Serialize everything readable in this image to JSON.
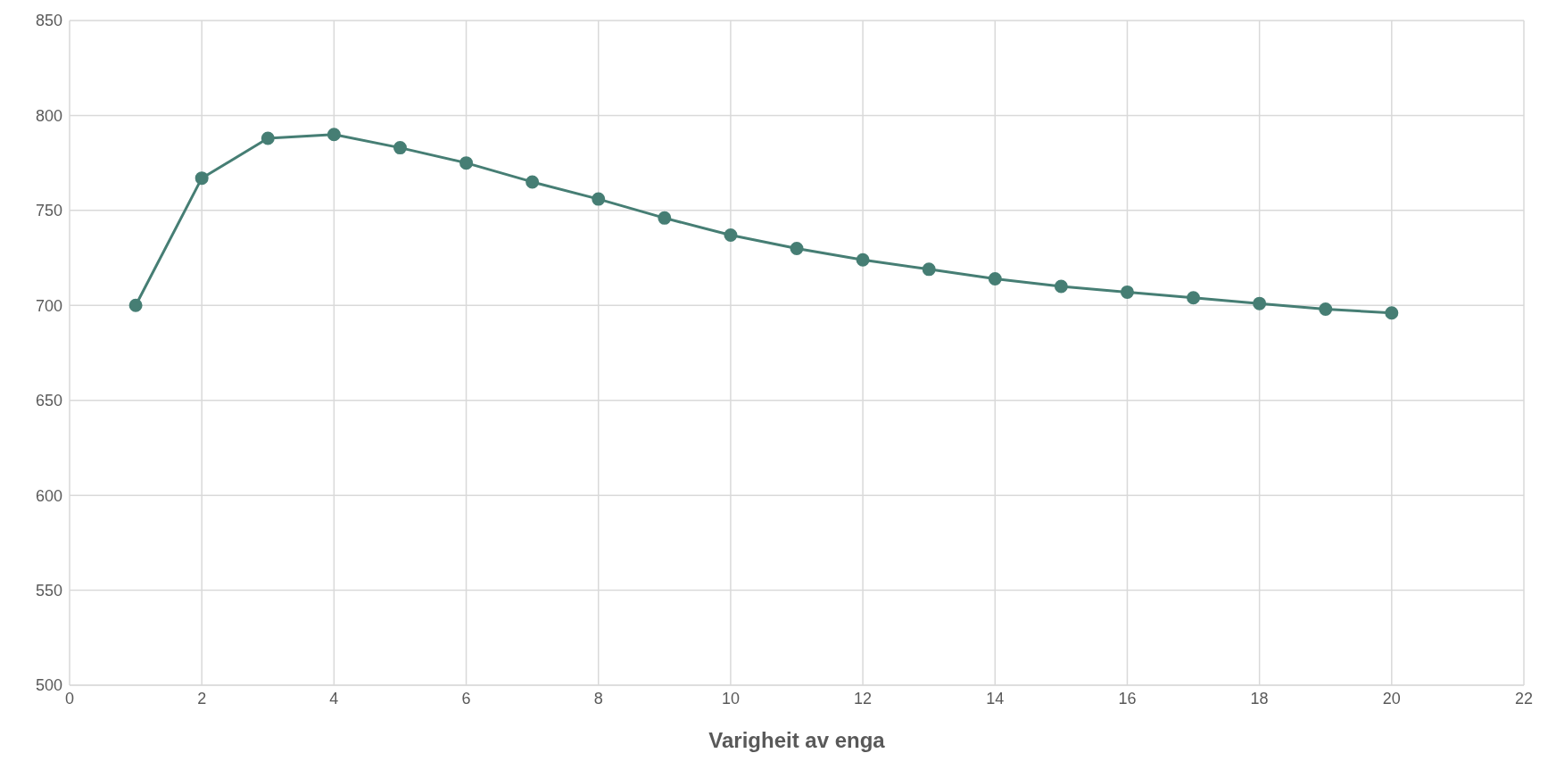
{
  "chart_data": {
    "type": "line",
    "xlabel": "Varigheit av enga",
    "x": [
      1,
      2,
      3,
      4,
      5,
      6,
      7,
      8,
      9,
      10,
      11,
      12,
      13,
      14,
      15,
      16,
      17,
      18,
      19,
      20
    ],
    "series": [
      {
        "color": "#467e74",
        "values": [
          700,
          767,
          788,
          790,
          783,
          775,
          765,
          756,
          746,
          737,
          730,
          724,
          719,
          714,
          710,
          707,
          704,
          701,
          698,
          696
        ]
      }
    ],
    "xlim": [
      0,
      22
    ],
    "xticks": [
      0,
      2,
      4,
      6,
      8,
      10,
      12,
      14,
      16,
      18,
      20,
      22
    ],
    "ylim": [
      500,
      850
    ],
    "yticks": [
      500,
      550,
      600,
      650,
      700,
      750,
      800,
      850
    ],
    "grid": true,
    "marker": "circle",
    "line_style": "solid",
    "legend": false
  }
}
